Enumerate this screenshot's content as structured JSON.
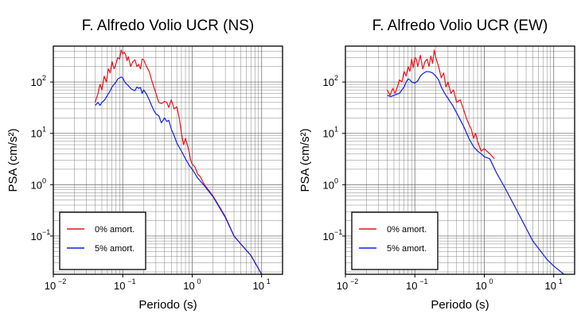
{
  "chart_data": [
    {
      "type": "line",
      "title": "F. Alfredo Volio UCR (NS)",
      "xlabel": "Periodo (s)",
      "ylabel": "PSA (cm/s²)",
      "xscale": "log",
      "yscale": "log",
      "xlim": [
        0.01,
        20
      ],
      "ylim": [
        0.018,
        500
      ],
      "x_ticks": [
        0.01,
        0.1,
        1,
        10
      ],
      "y_ticks": [
        0.1,
        1,
        10,
        100
      ],
      "grid": true,
      "legend_position": "bottom-left",
      "series": [
        {
          "name": "0% amort.",
          "color": "#e8141c",
          "x": [
            0.04,
            0.044,
            0.047,
            0.05,
            0.054,
            0.058,
            0.062,
            0.066,
            0.07,
            0.075,
            0.08,
            0.085,
            0.09,
            0.095,
            0.1,
            0.105,
            0.11,
            0.115,
            0.12,
            0.13,
            0.14,
            0.15,
            0.16,
            0.17,
            0.18,
            0.19,
            0.2,
            0.22,
            0.24,
            0.26,
            0.28,
            0.3,
            0.33,
            0.36,
            0.4,
            0.43,
            0.46,
            0.5,
            0.55,
            0.6,
            0.65,
            0.7,
            0.75,
            0.8,
            0.9,
            0.95,
            1.0,
            1.1,
            1.2,
            1.3,
            1.5,
            2.0,
            3.0,
            4.0,
            5.0,
            7.0,
            10.0
          ],
          "values": [
            40,
            60,
            90,
            70,
            130,
            100,
            180,
            150,
            250,
            180,
            230,
            300,
            280,
            420,
            350,
            380,
            340,
            260,
            310,
            200,
            250,
            270,
            200,
            220,
            180,
            280,
            270,
            200,
            160,
            110,
            80,
            60,
            40,
            38,
            42,
            40,
            32,
            45,
            30,
            33,
            20,
            10,
            6,
            8,
            4.5,
            3,
            2.5,
            2.2,
            1.6,
            1.45,
            1.0,
            0.6,
            0.24,
            0.1,
            0.07,
            0.042,
            0.018
          ]
        },
        {
          "name": "5% amort.",
          "color": "#1020e0",
          "x": [
            0.04,
            0.044,
            0.047,
            0.05,
            0.055,
            0.06,
            0.065,
            0.07,
            0.075,
            0.08,
            0.085,
            0.09,
            0.095,
            0.1,
            0.105,
            0.11,
            0.12,
            0.13,
            0.14,
            0.15,
            0.16,
            0.17,
            0.18,
            0.19,
            0.2,
            0.22,
            0.24,
            0.26,
            0.28,
            0.3,
            0.33,
            0.36,
            0.4,
            0.43,
            0.46,
            0.5,
            0.55,
            0.6,
            0.7,
            0.8,
            0.9,
            1.0,
            1.2,
            1.5,
            2.0,
            3.0,
            4.0,
            5.0,
            7.0,
            10.0
          ],
          "values": [
            35,
            40,
            35,
            40,
            45,
            55,
            65,
            80,
            90,
            100,
            115,
            120,
            125,
            120,
            105,
            95,
            85,
            75,
            70,
            68,
            80,
            75,
            78,
            60,
            70,
            58,
            45,
            35,
            28,
            24,
            22,
            16,
            20,
            17,
            18,
            12,
            9,
            6.5,
            4.5,
            3.2,
            2.4,
            2.0,
            1.35,
            0.95,
            0.58,
            0.23,
            0.1,
            0.07,
            0.042,
            0.018
          ]
        }
      ]
    },
    {
      "type": "line",
      "title": "F. Alfredo Volio UCR (EW)",
      "xlabel": "Periodo (s)",
      "ylabel": "PSA (cm/s²)",
      "xscale": "log",
      "yscale": "log",
      "xlim": [
        0.01,
        20
      ],
      "ylim": [
        0.018,
        500
      ],
      "x_ticks": [
        0.01,
        0.1,
        1,
        10
      ],
      "y_ticks": [
        0.1,
        1,
        10,
        100
      ],
      "grid": true,
      "legend_position": "bottom-left",
      "series": [
        {
          "name": "0% amort.",
          "color": "#e8141c",
          "x": [
            0.04,
            0.044,
            0.048,
            0.052,
            0.056,
            0.06,
            0.065,
            0.07,
            0.075,
            0.08,
            0.085,
            0.09,
            0.095,
            0.1,
            0.105,
            0.11,
            0.12,
            0.13,
            0.14,
            0.15,
            0.16,
            0.17,
            0.18,
            0.19,
            0.2,
            0.22,
            0.24,
            0.26,
            0.28,
            0.3,
            0.33,
            0.36,
            0.4,
            0.45,
            0.5,
            0.55,
            0.6,
            0.65,
            0.7,
            0.75,
            0.8,
            0.9,
            1.0,
            1.2,
            1.4
          ],
          "values": [
            70,
            55,
            75,
            60,
            80,
            110,
            100,
            160,
            130,
            200,
            160,
            280,
            190,
            300,
            280,
            200,
            330,
            180,
            250,
            280,
            200,
            320,
            230,
            420,
            300,
            200,
            120,
            150,
            80,
            100,
            60,
            70,
            40,
            45,
            30,
            20,
            15,
            12,
            8,
            10,
            7,
            4.5,
            5,
            4,
            3.2
          ]
        },
        {
          "name": "5% amort.",
          "color": "#1020e0",
          "x": [
            0.04,
            0.045,
            0.05,
            0.055,
            0.06,
            0.065,
            0.07,
            0.075,
            0.08,
            0.085,
            0.09,
            0.1,
            0.11,
            0.12,
            0.13,
            0.14,
            0.15,
            0.16,
            0.17,
            0.18,
            0.19,
            0.2,
            0.22,
            0.24,
            0.26,
            0.28,
            0.3,
            0.35,
            0.4,
            0.5,
            0.6,
            0.7,
            0.8,
            0.9,
            1.0,
            1.2,
            1.5,
            2.0,
            3.0,
            5.0,
            8.0,
            10.0,
            14.0
          ],
          "values": [
            55,
            52,
            55,
            58,
            60,
            70,
            80,
            100,
            115,
            110,
            100,
            95,
            105,
            130,
            145,
            155,
            160,
            158,
            155,
            150,
            140,
            130,
            110,
            80,
            65,
            55,
            48,
            35,
            25,
            14,
            8,
            5.5,
            4.5,
            4,
            3.5,
            3.2,
            1.7,
            0.85,
            0.3,
            0.08,
            0.035,
            0.026,
            0.018
          ]
        }
      ]
    }
  ]
}
